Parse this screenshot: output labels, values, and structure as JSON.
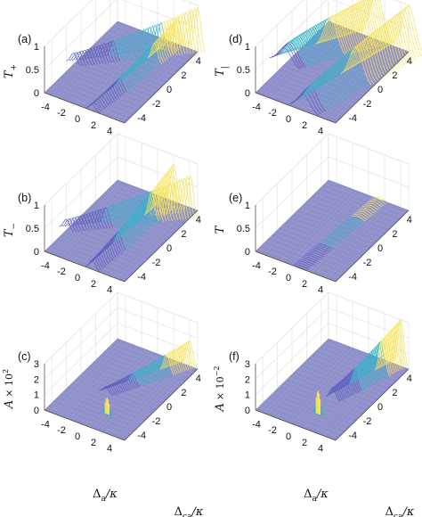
{
  "chart_data": [
    {
      "panel": "(a)",
      "type": "surface",
      "zlabel_sym": "T",
      "zlabel_sub": "+",
      "xlabel_sym": "",
      "xlabel_sub": "",
      "ylabel_sym": "",
      "ylabel_sub": "",
      "x_ticks": [
        "-4",
        "-2",
        "0",
        "2",
        "4"
      ],
      "y_ticks": [
        "4",
        "2",
        "0",
        "-2",
        "-4"
      ],
      "z_ticks": [
        "1",
        "0.5",
        "0"
      ],
      "xlim": [
        -5,
        5
      ],
      "ylim": [
        -5,
        5
      ],
      "zlim": [
        0,
        1
      ],
      "features": [
        {
          "shape": "ridge",
          "from": [
            -5,
            -1
          ],
          "to": [
            5,
            5
          ],
          "peak": 0.95
        },
        {
          "shape": "ridge",
          "from": [
            1,
            -5
          ],
          "to": [
            2.5,
            5
          ],
          "peak": 0.55
        }
      ]
    },
    {
      "panel": "(b)",
      "type": "surface",
      "zlabel_sym": "T",
      "zlabel_sub": "−",
      "xlabel_sym": "",
      "xlabel_sub": "",
      "ylabel_sym": "",
      "ylabel_sub": "",
      "x_ticks": [
        "-4",
        "-2",
        "0",
        "2",
        "4"
      ],
      "y_ticks": [
        "4",
        "2",
        "0",
        "-2",
        "-4"
      ],
      "z_ticks": [
        "1",
        "0.5",
        "0"
      ],
      "xlim": [
        -5,
        5
      ],
      "ylim": [
        -5,
        5
      ],
      "zlim": [
        0,
        1
      ],
      "features": [
        {
          "shape": "ridge",
          "from": [
            -5,
            -2
          ],
          "to": [
            5,
            4
          ],
          "peak": 0.9
        },
        {
          "shape": "ridge",
          "from": [
            1,
            -5
          ],
          "to": [
            2,
            5
          ],
          "peak": 0.8
        }
      ]
    },
    {
      "panel": "(c)",
      "type": "surface",
      "zlabel_sym": "A",
      "zlabel_sub": "",
      "zscale": "× 10",
      "zscale_exp": "2",
      "xlabel_sym": "Δ",
      "xlabel_sub": "a",
      "xlabel_den": "/κ",
      "ylabel_sym": "Δ",
      "ylabel_sub": "ca",
      "ylabel_den": "/κ",
      "x_ticks": [
        "-4",
        "-2",
        "0",
        "2",
        "4"
      ],
      "y_ticks": [
        "4",
        "2",
        "0",
        "-2",
        "-4"
      ],
      "z_ticks": [
        "3",
        "2",
        "1",
        "0"
      ],
      "xlim": [
        -5,
        5
      ],
      "ylim": [
        -5,
        5
      ],
      "zlim": [
        0,
        3
      ],
      "features": [
        {
          "shape": "ridge",
          "from": [
            -1,
            -1
          ],
          "to": [
            4,
            5
          ],
          "peak": 0.55
        },
        {
          "shape": "spike",
          "at": [
            1,
            -3
          ],
          "peak": 0.35
        }
      ]
    },
    {
      "panel": "(d)",
      "type": "surface",
      "zlabel_sym": "T",
      "zlabel_sub": "|",
      "xlabel_sym": "",
      "xlabel_sub": "",
      "ylabel_sym": "",
      "ylabel_sub": "",
      "x_ticks": [
        "-4",
        "-2",
        "0",
        "2",
        "4"
      ],
      "y_ticks": [
        "4",
        "2",
        "0",
        "-2",
        "-4"
      ],
      "z_ticks": [
        "1",
        "0.5",
        "0"
      ],
      "xlim": [
        -5,
        5
      ],
      "ylim": [
        -5,
        5
      ],
      "zlim": [
        0,
        1
      ],
      "features": [
        {
          "shape": "sheet",
          "from": [
            -5,
            -1
          ],
          "to": [
            1,
            5
          ],
          "peak": 1.0
        },
        {
          "shape": "sheet",
          "from": [
            1,
            -5
          ],
          "to": [
            5,
            5
          ],
          "peak": 1.0
        }
      ]
    },
    {
      "panel": "(e)",
      "type": "surface",
      "zlabel_sym": "T",
      "zlabel_sub": "",
      "xlabel_sym": "",
      "xlabel_sub": "",
      "ylabel_sym": "",
      "ylabel_sub": "",
      "x_ticks": [
        "-4",
        "-2",
        "0",
        "2",
        "4"
      ],
      "y_ticks": [
        "4",
        "2",
        "0",
        "-2",
        "-4"
      ],
      "z_ticks": [
        "1",
        "0.5",
        "0"
      ],
      "xlim": [
        -5,
        5
      ],
      "ylim": [
        -5,
        5
      ],
      "zlim": [
        0,
        1
      ],
      "features": [
        {
          "shape": "ridge",
          "from": [
            0.5,
            -5
          ],
          "to": [
            1.5,
            5
          ],
          "peak": 0.05
        }
      ]
    },
    {
      "panel": "(f)",
      "type": "surface",
      "zlabel_sym": "A",
      "zlabel_sub": "",
      "zscale": "× 10",
      "zscale_exp": "−2",
      "xlabel_sym": "Δ",
      "xlabel_sub": "a",
      "xlabel_den": "/κ",
      "ylabel_sym": "Δ",
      "ylabel_sub": "ca",
      "ylabel_den": "/κ",
      "x_ticks": [
        "-4",
        "-2",
        "0",
        "2",
        "4"
      ],
      "y_ticks": [
        "4",
        "2",
        "0",
        "-2",
        "-4"
      ],
      "z_ticks": [
        "3",
        "2",
        "1",
        "0"
      ],
      "xlim": [
        -5,
        5
      ],
      "ylim": [
        -5,
        5
      ],
      "zlim": [
        0,
        3
      ],
      "features": [
        {
          "shape": "ridge",
          "from": [
            1,
            -1
          ],
          "to": [
            4,
            5
          ],
          "peak": 1.0
        },
        {
          "shape": "spike",
          "at": [
            1,
            -3
          ],
          "peak": 0.5
        }
      ]
    }
  ],
  "colors": {
    "base": "#8f8fca",
    "low": "#5b5bbf",
    "mid": "#33b5c9",
    "high": "#f5e35a",
    "grid": "#e3e3e3"
  }
}
